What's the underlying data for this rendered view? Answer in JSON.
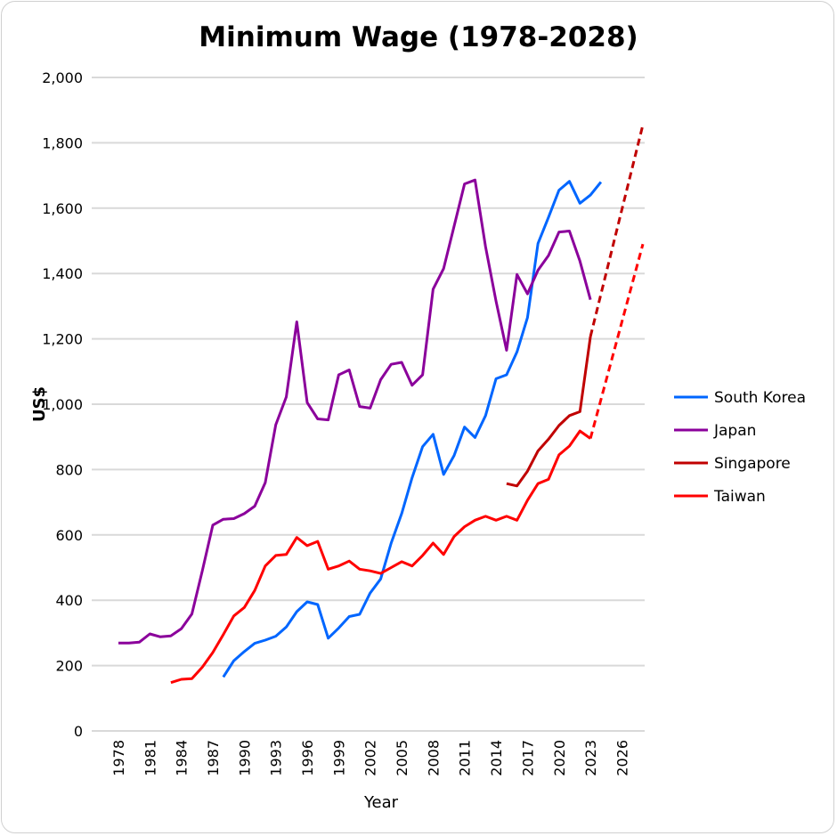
{
  "chart_data": {
    "type": "line",
    "title": "Minimum Wage (1978-2028)",
    "xlabel": "Year",
    "ylabel": "US$",
    "ylim": [
      0,
      2000
    ],
    "yticks": [
      0,
      200,
      400,
      600,
      800,
      1000,
      1200,
      1400,
      1600,
      1800,
      2000
    ],
    "ytick_labels": [
      "0",
      "200",
      "400",
      "600",
      "800",
      "1,000",
      "1,200",
      "1,400",
      "1,600",
      "1,800",
      "2,000"
    ],
    "xlim": [
      1978,
      2028
    ],
    "xticks": [
      "1978",
      "1981",
      "1984",
      "1987",
      "1990",
      "1993",
      "1996",
      "1999",
      "2002",
      "2005",
      "2008",
      "2011",
      "2014",
      "2017",
      "2020",
      "2023",
      "2026"
    ],
    "grid": true,
    "legend_position": "right",
    "series": [
      {
        "name": "South Korea",
        "color": "#0066ff",
        "x": [
          1988,
          1989,
          1990,
          1991,
          1992,
          1993,
          1994,
          1995,
          1996,
          1997,
          1998,
          1999,
          2000,
          2001,
          2002,
          2003,
          2004,
          2005,
          2006,
          2007,
          2008,
          2009,
          2010,
          2011,
          2012,
          2013,
          2014,
          2015,
          2016,
          2017,
          2018,
          2019,
          2020,
          2021,
          2022,
          2023,
          2024
        ],
        "values": [
          165,
          215,
          243,
          268,
          278,
          290,
          318,
          365,
          395,
          387,
          284,
          315,
          350,
          357,
          422,
          465,
          575,
          665,
          775,
          870,
          908,
          785,
          843,
          930,
          898,
          965,
          1078,
          1090,
          1160,
          1265,
          1492,
          1572,
          1655,
          1682,
          1615,
          1640,
          1680
        ]
      },
      {
        "name": "Japan",
        "color": "#8b009b",
        "x": [
          1978,
          1979,
          1980,
          1981,
          1982,
          1983,
          1984,
          1985,
          1986,
          1987,
          1988,
          1989,
          1990,
          1991,
          1992,
          1993,
          1994,
          1995,
          1996,
          1997,
          1998,
          1999,
          2000,
          2001,
          2002,
          2003,
          2004,
          2005,
          2006,
          2007,
          2008,
          2009,
          2010,
          2011,
          2012,
          2013,
          2014,
          2015,
          2016,
          2017,
          2018,
          2019,
          2020,
          2021,
          2022,
          2023
        ],
        "values": [
          269,
          269,
          272,
          297,
          288,
          291,
          313,
          358,
          490,
          630,
          648,
          650,
          665,
          688,
          760,
          937,
          1022,
          1252,
          1005,
          955,
          952,
          1090,
          1105,
          993,
          988,
          1075,
          1122,
          1128,
          1058,
          1090,
          1352,
          1415,
          1545,
          1674,
          1686,
          1482,
          1315,
          1165,
          1397,
          1338,
          1410,
          1455,
          1527,
          1530,
          1438,
          1320
        ]
      },
      {
        "name": "Singapore",
        "color": "#c00000",
        "x": [
          2015,
          2016,
          2017,
          2018,
          2019,
          2020,
          2021,
          2022,
          2023
        ],
        "values": [
          757,
          750,
          795,
          857,
          893,
          935,
          965,
          977,
          1207
        ],
        "projection": {
          "x": [
            2023,
            2028
          ],
          "values": [
            1207,
            1855
          ]
        }
      },
      {
        "name": "Taiwan",
        "color": "#ff0000",
        "x": [
          1983,
          1984,
          1985,
          1986,
          1987,
          1988,
          1989,
          1990,
          1991,
          1992,
          1993,
          1994,
          1995,
          1996,
          1997,
          1998,
          1999,
          2000,
          2001,
          2002,
          2003,
          2004,
          2005,
          2006,
          2007,
          2008,
          2009,
          2010,
          2011,
          2012,
          2013,
          2014,
          2015,
          2016,
          2017,
          2018,
          2019,
          2020,
          2021,
          2022,
          2023
        ],
        "values": [
          148,
          158,
          160,
          195,
          240,
          295,
          352,
          378,
          430,
          505,
          537,
          540,
          592,
          567,
          580,
          495,
          505,
          520,
          495,
          490,
          482,
          500,
          518,
          505,
          537,
          575,
          540,
          595,
          625,
          645,
          657,
          645,
          657,
          645,
          706,
          757,
          770,
          845,
          872,
          918,
          895
        ],
        "projection": {
          "x": [
            2023,
            2028
          ],
          "values": [
            895,
            1490
          ]
        }
      }
    ]
  }
}
